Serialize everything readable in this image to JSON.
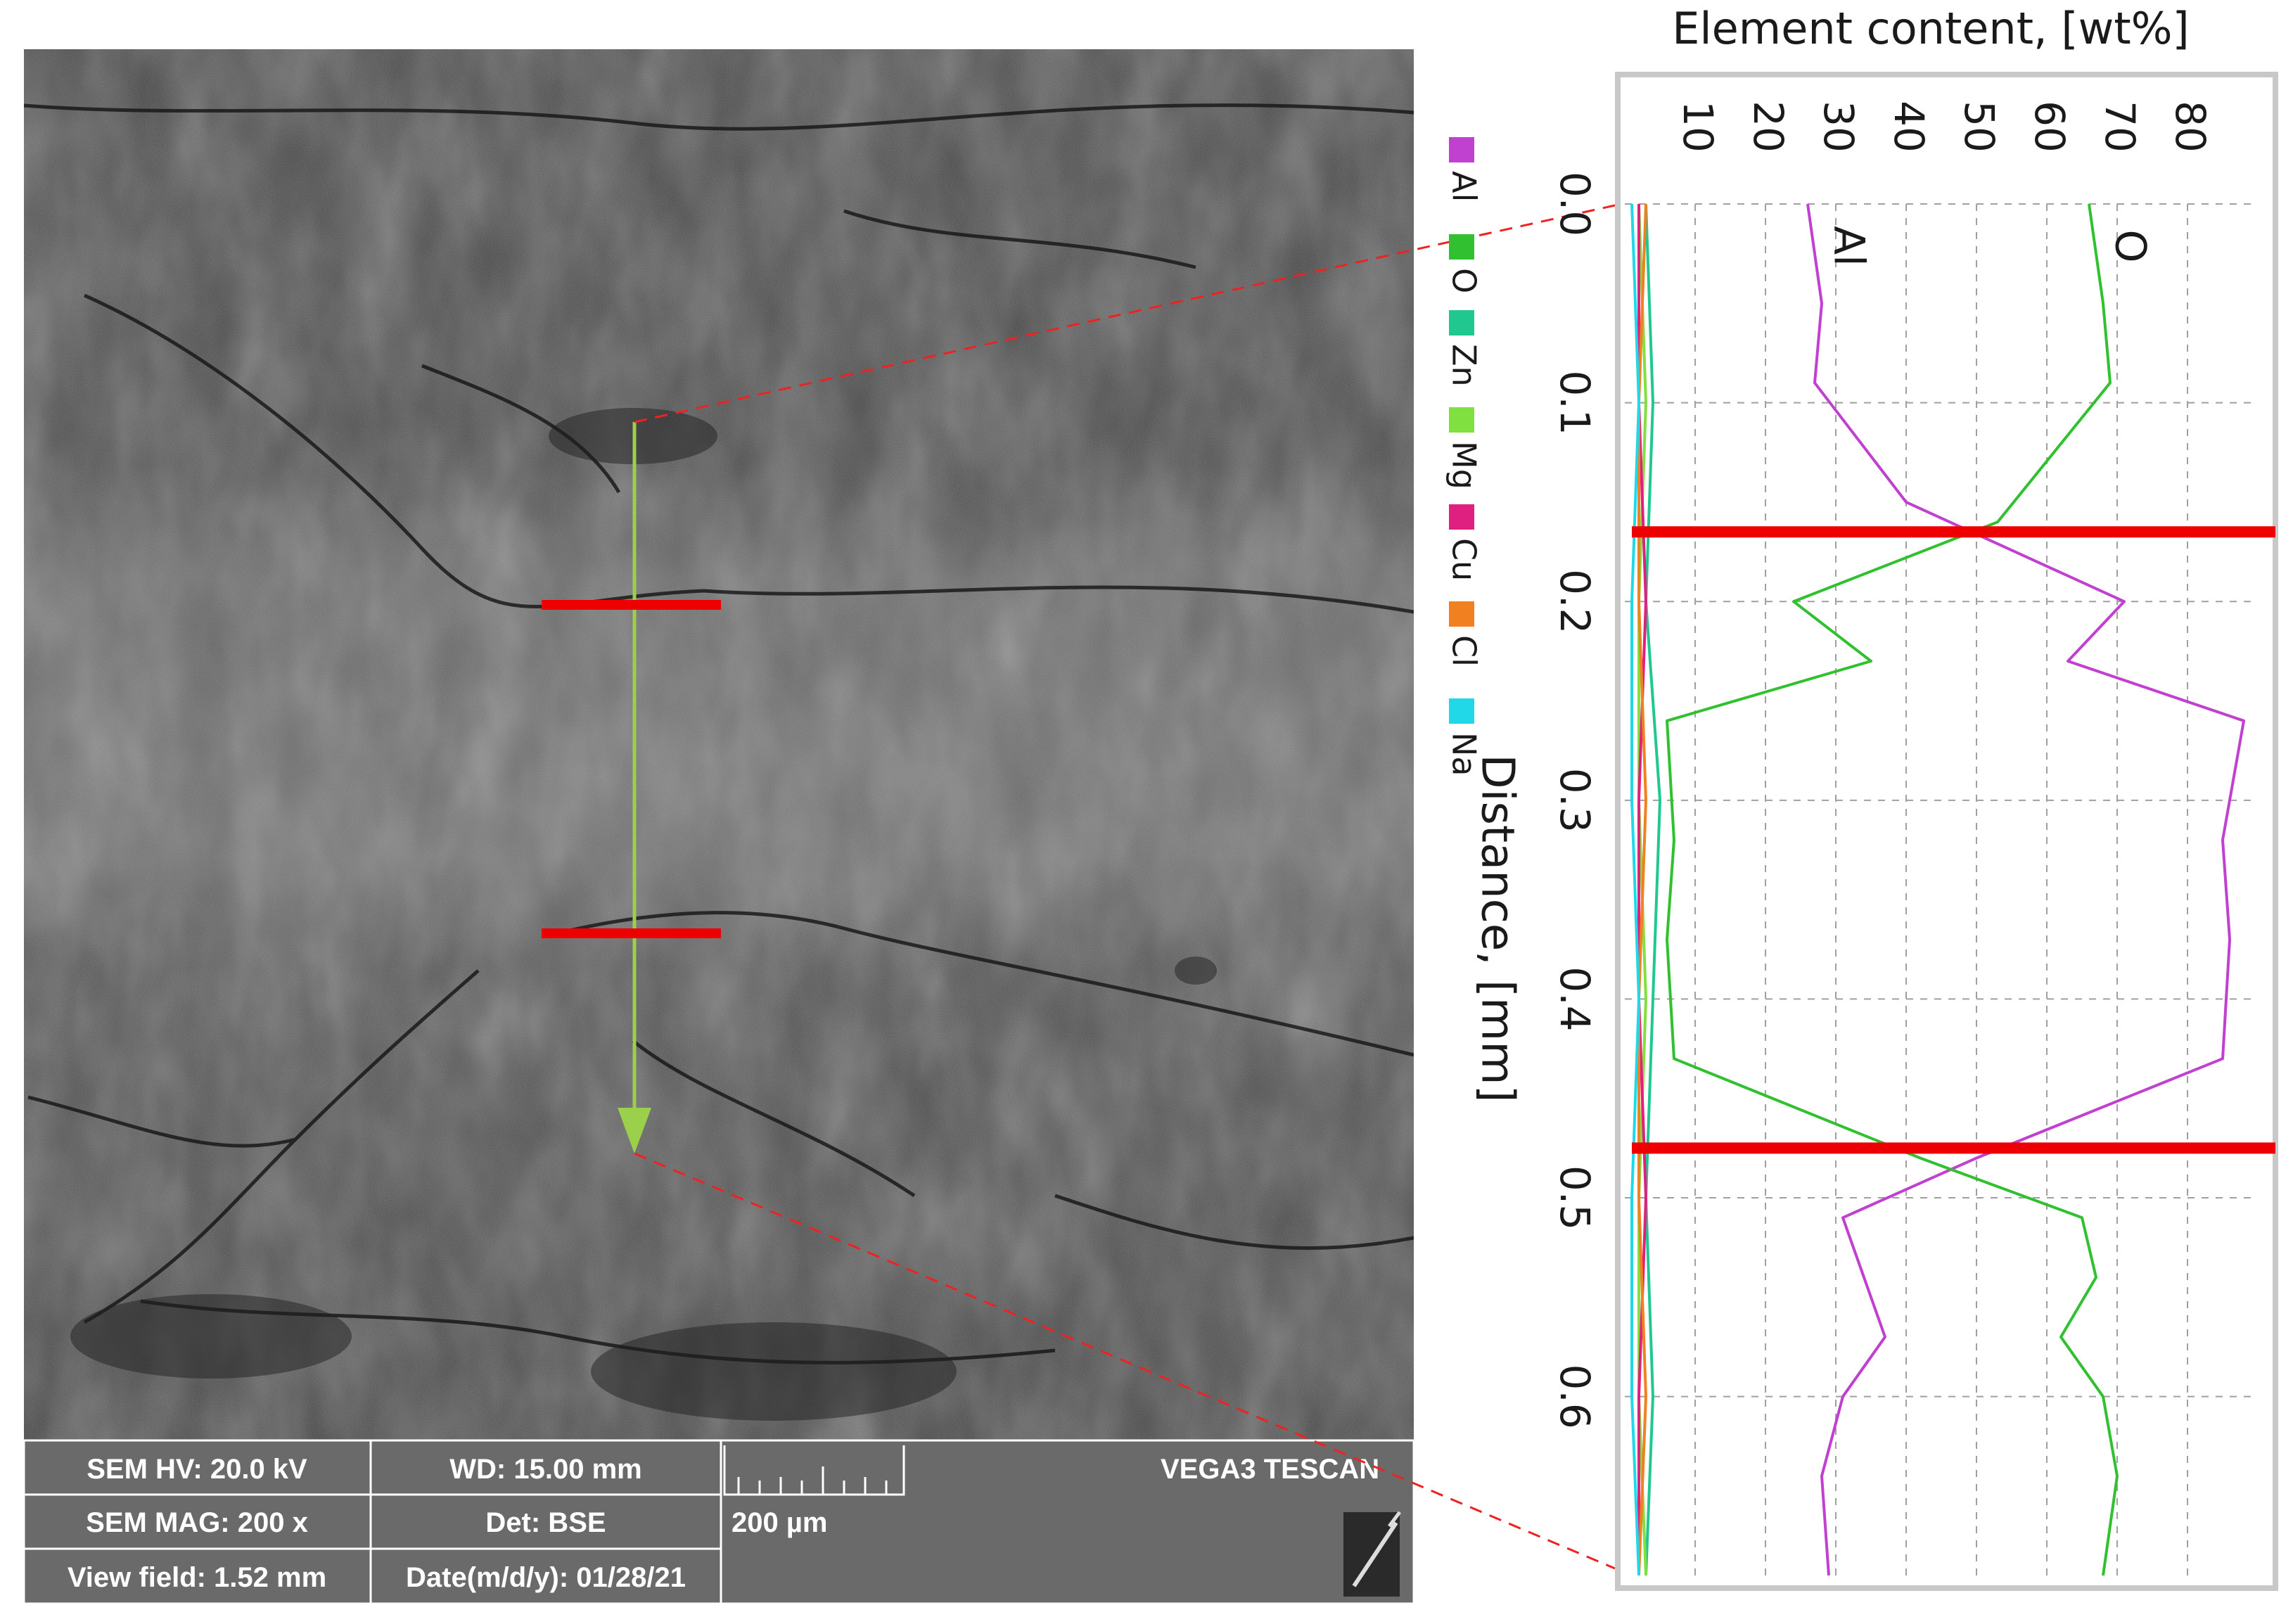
{
  "sem_image": {
    "databar": {
      "hv": "SEM HV: 20.0 kV",
      "wd": "WD: 15.00 mm",
      "mag": "SEM MAG: 200 x",
      "det": "Det: BSE",
      "view_field": "View field: 1.52 mm",
      "date": "Date(m/d/y): 01/28/21",
      "scale_label": "200 µm",
      "instrument": "VEGA3 TESCAN"
    }
  },
  "chart_data": {
    "type": "line",
    "title": "Element content, [wt%]",
    "xlabel": "Distance, [mm]",
    "ylabel": "",
    "orientation": "rotated-90-clockwise",
    "xlim": [
      0.0,
      0.69
    ],
    "ylim": [
      0,
      90
    ],
    "x_ticks": [
      0.0,
      0.1,
      0.2,
      0.3,
      0.4,
      0.5,
      0.6
    ],
    "x_tick_labels": [
      "0.0",
      "0.1",
      "0.2",
      "0.3",
      "0.4",
      "0.5",
      "0.6"
    ],
    "y_ticks": [
      10,
      20,
      30,
      40,
      50,
      60,
      70,
      80
    ],
    "y_tick_labels": [
      "10",
      "20",
      "30",
      "40",
      "50",
      "60",
      "70",
      "80"
    ],
    "grid": true,
    "legend_position": "left, rotated",
    "series": [
      {
        "name": "Al",
        "color": "#c040d0",
        "label": "Al",
        "x": [
          0.0,
          0.05,
          0.09,
          0.15,
          0.2,
          0.23,
          0.26,
          0.32,
          0.37,
          0.43,
          0.48,
          0.51,
          0.54,
          0.57,
          0.6,
          0.64,
          0.69
        ],
        "y": [
          26,
          28,
          27,
          40,
          71,
          63,
          88,
          85,
          86,
          85,
          50,
          31,
          34,
          37,
          31,
          28,
          29
        ]
      },
      {
        "name": "O",
        "color": "#30c030",
        "label": "O",
        "x": [
          0.0,
          0.05,
          0.09,
          0.16,
          0.2,
          0.23,
          0.26,
          0.32,
          0.37,
          0.43,
          0.48,
          0.51,
          0.54,
          0.57,
          0.6,
          0.64,
          0.69
        ],
        "y": [
          66,
          68,
          69,
          53,
          24,
          35,
          6,
          7,
          6,
          7,
          42,
          65,
          67,
          62,
          68,
          70,
          68
        ]
      },
      {
        "name": "Zn",
        "color": "#20c890",
        "x": [
          0.0,
          0.1,
          0.2,
          0.3,
          0.4,
          0.5,
          0.6,
          0.69
        ],
        "y": [
          3,
          4,
          3,
          5,
          4,
          3,
          4,
          3
        ]
      },
      {
        "name": "Mg",
        "color": "#80e040",
        "x": [
          0.0,
          0.1,
          0.2,
          0.3,
          0.4,
          0.5,
          0.6,
          0.69
        ],
        "y": [
          2,
          3,
          2,
          2,
          3,
          2,
          2,
          3
        ]
      },
      {
        "name": "Cu",
        "color": "#e02080",
        "x": [
          0.0,
          0.1,
          0.2,
          0.3,
          0.4,
          0.5,
          0.6,
          0.69
        ],
        "y": [
          2,
          2,
          3,
          2,
          2,
          3,
          2,
          2
        ]
      },
      {
        "name": "Cl",
        "color": "#f08020",
        "x": [
          0.0,
          0.1,
          0.2,
          0.3,
          0.4,
          0.5,
          0.6,
          0.69
        ],
        "y": [
          3,
          2,
          2,
          3,
          2,
          2,
          3,
          2
        ]
      },
      {
        "name": "Na",
        "color": "#20d8e8",
        "x": [
          0.0,
          0.1,
          0.2,
          0.3,
          0.4,
          0.5,
          0.6,
          0.69
        ],
        "y": [
          1,
          2,
          1,
          1,
          2,
          1,
          1,
          2
        ]
      }
    ],
    "boundaries_mm": [
      0.165,
      0.475
    ]
  }
}
